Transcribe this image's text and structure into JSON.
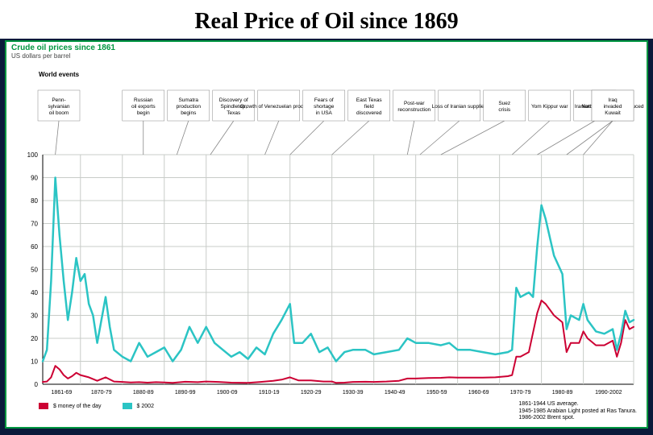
{
  "slide": {
    "title": "Real Price of Oil since 1869",
    "title_fontsize": 28,
    "title_font": "Times New Roman",
    "title_color": "#000000",
    "background_color": "#0a1a3a"
  },
  "chart": {
    "type": "line",
    "title": "Crude oil prices since 1861",
    "title_color": "#009640",
    "title_fontsize": 10,
    "subtitle": "US dollars per barrel",
    "subtitle_color": "#444444",
    "border_color": "#009640",
    "background_color": "#ffffff",
    "grid_color": "#c8ccc8",
    "axis_color": "#000000",
    "label_fontsize": 8,
    "ylim": [
      0,
      100
    ],
    "ytick_step": 10,
    "x_range_years": [
      1861,
      2002
    ],
    "x_tick_labels": [
      "1861-69",
      "1870-79",
      "1880-89",
      "1890-99",
      "1900-09",
      "1910-19",
      "1920-29",
      "1930-39",
      "1940-49",
      "1950-59",
      "1960-69",
      "1970-79",
      "1980-89",
      "1990-2002"
    ],
    "world_events_label": "World events",
    "events": [
      {
        "year": 1864,
        "label": "Penn-\nsylvanian\noil boom"
      },
      {
        "year": 1885,
        "label": "Russian\noil exports\nbegin"
      },
      {
        "year": 1893,
        "label": "Sumatra\nproduction\nbegins"
      },
      {
        "year": 1901,
        "label": "Discovery of\nSpindletop,\nTexas"
      },
      {
        "year": 1914,
        "label": "Growth of Venezuelan production"
      },
      {
        "year": 1920,
        "label": "Fears of\nshortage\nin USA"
      },
      {
        "year": 1930,
        "label": "East Texas\nfield\ndiscovered"
      },
      {
        "year": 1951,
        "label": "Loss of Iranian supplies"
      },
      {
        "year": 1948,
        "label": "Post-war\nreconstruction"
      },
      {
        "year": 1956,
        "label": "Suez\ncrisis"
      },
      {
        "year": 1973,
        "label": "Yom Kippur war"
      },
      {
        "year": 1979,
        "label": "Iranian revolution"
      },
      {
        "year": 1986,
        "label": "Netback pricing introduced"
      },
      {
        "year": 1990,
        "label": "Iraq\ninvaded\nKuwait"
      }
    ],
    "series": [
      {
        "name": "$ money of the day",
        "color": "#cc0033",
        "line_width": 2,
        "points": [
          [
            1861,
            1.0
          ],
          [
            1862,
            1.2
          ],
          [
            1863,
            3.0
          ],
          [
            1864,
            8.0
          ],
          [
            1865,
            6.5
          ],
          [
            1866,
            4.0
          ],
          [
            1867,
            2.5
          ],
          [
            1868,
            3.5
          ],
          [
            1869,
            5.0
          ],
          [
            1870,
            4.0
          ],
          [
            1872,
            3.0
          ],
          [
            1874,
            1.5
          ],
          [
            1876,
            3.0
          ],
          [
            1878,
            1.2
          ],
          [
            1880,
            1.0
          ],
          [
            1882,
            0.8
          ],
          [
            1884,
            0.9
          ],
          [
            1886,
            0.7
          ],
          [
            1888,
            0.9
          ],
          [
            1890,
            0.8
          ],
          [
            1892,
            0.6
          ],
          [
            1895,
            1.1
          ],
          [
            1898,
            0.9
          ],
          [
            1900,
            1.2
          ],
          [
            1903,
            1.0
          ],
          [
            1906,
            0.7
          ],
          [
            1910,
            0.6
          ],
          [
            1913,
            1.0
          ],
          [
            1916,
            1.5
          ],
          [
            1918,
            2.0
          ],
          [
            1920,
            3.0
          ],
          [
            1922,
            1.7
          ],
          [
            1925,
            1.7
          ],
          [
            1928,
            1.2
          ],
          [
            1930,
            1.2
          ],
          [
            1931,
            0.6
          ],
          [
            1933,
            0.7
          ],
          [
            1935,
            1.0
          ],
          [
            1938,
            1.1
          ],
          [
            1940,
            1.0
          ],
          [
            1943,
            1.2
          ],
          [
            1946,
            1.5
          ],
          [
            1948,
            2.5
          ],
          [
            1950,
            2.5
          ],
          [
            1953,
            2.7
          ],
          [
            1956,
            2.8
          ],
          [
            1958,
            3.0
          ],
          [
            1960,
            2.9
          ],
          [
            1963,
            2.9
          ],
          [
            1966,
            2.9
          ],
          [
            1969,
            3.0
          ],
          [
            1972,
            3.5
          ],
          [
            1973,
            4.0
          ],
          [
            1974,
            12.0
          ],
          [
            1975,
            12.0
          ],
          [
            1977,
            14.0
          ],
          [
            1979,
            31.0
          ],
          [
            1980,
            36.5
          ],
          [
            1981,
            35.0
          ],
          [
            1983,
            30.0
          ],
          [
            1985,
            27.0
          ],
          [
            1986,
            14.0
          ],
          [
            1987,
            18.0
          ],
          [
            1989,
            18.0
          ],
          [
            1990,
            23.0
          ],
          [
            1991,
            20.0
          ],
          [
            1993,
            17.0
          ],
          [
            1995,
            17.0
          ],
          [
            1997,
            19.0
          ],
          [
            1998,
            12.0
          ],
          [
            1999,
            18.0
          ],
          [
            2000,
            28.0
          ],
          [
            2001,
            24.0
          ],
          [
            2002,
            25.0
          ]
        ]
      },
      {
        "name": "$ 2002",
        "color": "#2bc4c4",
        "line_width": 2.5,
        "points": [
          [
            1861,
            10.0
          ],
          [
            1862,
            15.0
          ],
          [
            1863,
            45.0
          ],
          [
            1864,
            90.0
          ],
          [
            1865,
            65.0
          ],
          [
            1866,
            45.0
          ],
          [
            1867,
            28.0
          ],
          [
            1868,
            40.0
          ],
          [
            1869,
            55.0
          ],
          [
            1870,
            45.0
          ],
          [
            1871,
            48.0
          ],
          [
            1872,
            35.0
          ],
          [
            1873,
            30.0
          ],
          [
            1874,
            18.0
          ],
          [
            1876,
            38.0
          ],
          [
            1877,
            25.0
          ],
          [
            1878,
            15.0
          ],
          [
            1880,
            12.0
          ],
          [
            1882,
            10.0
          ],
          [
            1884,
            18.0
          ],
          [
            1886,
            12.0
          ],
          [
            1888,
            14.0
          ],
          [
            1890,
            16.0
          ],
          [
            1892,
            10.0
          ],
          [
            1894,
            15.0
          ],
          [
            1896,
            25.0
          ],
          [
            1898,
            18.0
          ],
          [
            1900,
            25.0
          ],
          [
            1902,
            18.0
          ],
          [
            1904,
            15.0
          ],
          [
            1906,
            12.0
          ],
          [
            1908,
            14.0
          ],
          [
            1910,
            11.0
          ],
          [
            1912,
            16.0
          ],
          [
            1914,
            13.0
          ],
          [
            1916,
            22.0
          ],
          [
            1918,
            28.0
          ],
          [
            1920,
            35.0
          ],
          [
            1921,
            18.0
          ],
          [
            1923,
            18.0
          ],
          [
            1925,
            22.0
          ],
          [
            1927,
            14.0
          ],
          [
            1929,
            16.0
          ],
          [
            1931,
            10.0
          ],
          [
            1933,
            14.0
          ],
          [
            1935,
            15.0
          ],
          [
            1938,
            15.0
          ],
          [
            1940,
            13.0
          ],
          [
            1943,
            14.0
          ],
          [
            1946,
            15.0
          ],
          [
            1948,
            20.0
          ],
          [
            1950,
            18.0
          ],
          [
            1953,
            18.0
          ],
          [
            1956,
            17.0
          ],
          [
            1958,
            18.0
          ],
          [
            1960,
            15.0
          ],
          [
            1963,
            15.0
          ],
          [
            1966,
            14.0
          ],
          [
            1969,
            13.0
          ],
          [
            1972,
            14.0
          ],
          [
            1973,
            15.0
          ],
          [
            1974,
            42.0
          ],
          [
            1975,
            38.0
          ],
          [
            1977,
            40.0
          ],
          [
            1978,
            38.0
          ],
          [
            1979,
            60.0
          ],
          [
            1980,
            78.0
          ],
          [
            1981,
            72.0
          ],
          [
            1983,
            56.0
          ],
          [
            1985,
            48.0
          ],
          [
            1986,
            24.0
          ],
          [
            1987,
            30.0
          ],
          [
            1989,
            28.0
          ],
          [
            1990,
            35.0
          ],
          [
            1991,
            28.0
          ],
          [
            1993,
            23.0
          ],
          [
            1995,
            22.0
          ],
          [
            1997,
            24.0
          ],
          [
            1998,
            15.0
          ],
          [
            1999,
            22.0
          ],
          [
            2000,
            32.0
          ],
          [
            2001,
            27.0
          ],
          [
            2002,
            28.0
          ]
        ]
      }
    ],
    "legend": {
      "items": [
        {
          "label": "$ money of the day",
          "color": "#cc0033"
        },
        {
          "label": "$ 2002",
          "color": "#2bc4c4"
        }
      ]
    },
    "footer_notes": [
      "1861-1944 US average.",
      "1945-1985 Arabian Light posted at Ras Tanura.",
      "1986-2002 Brent spot."
    ]
  }
}
